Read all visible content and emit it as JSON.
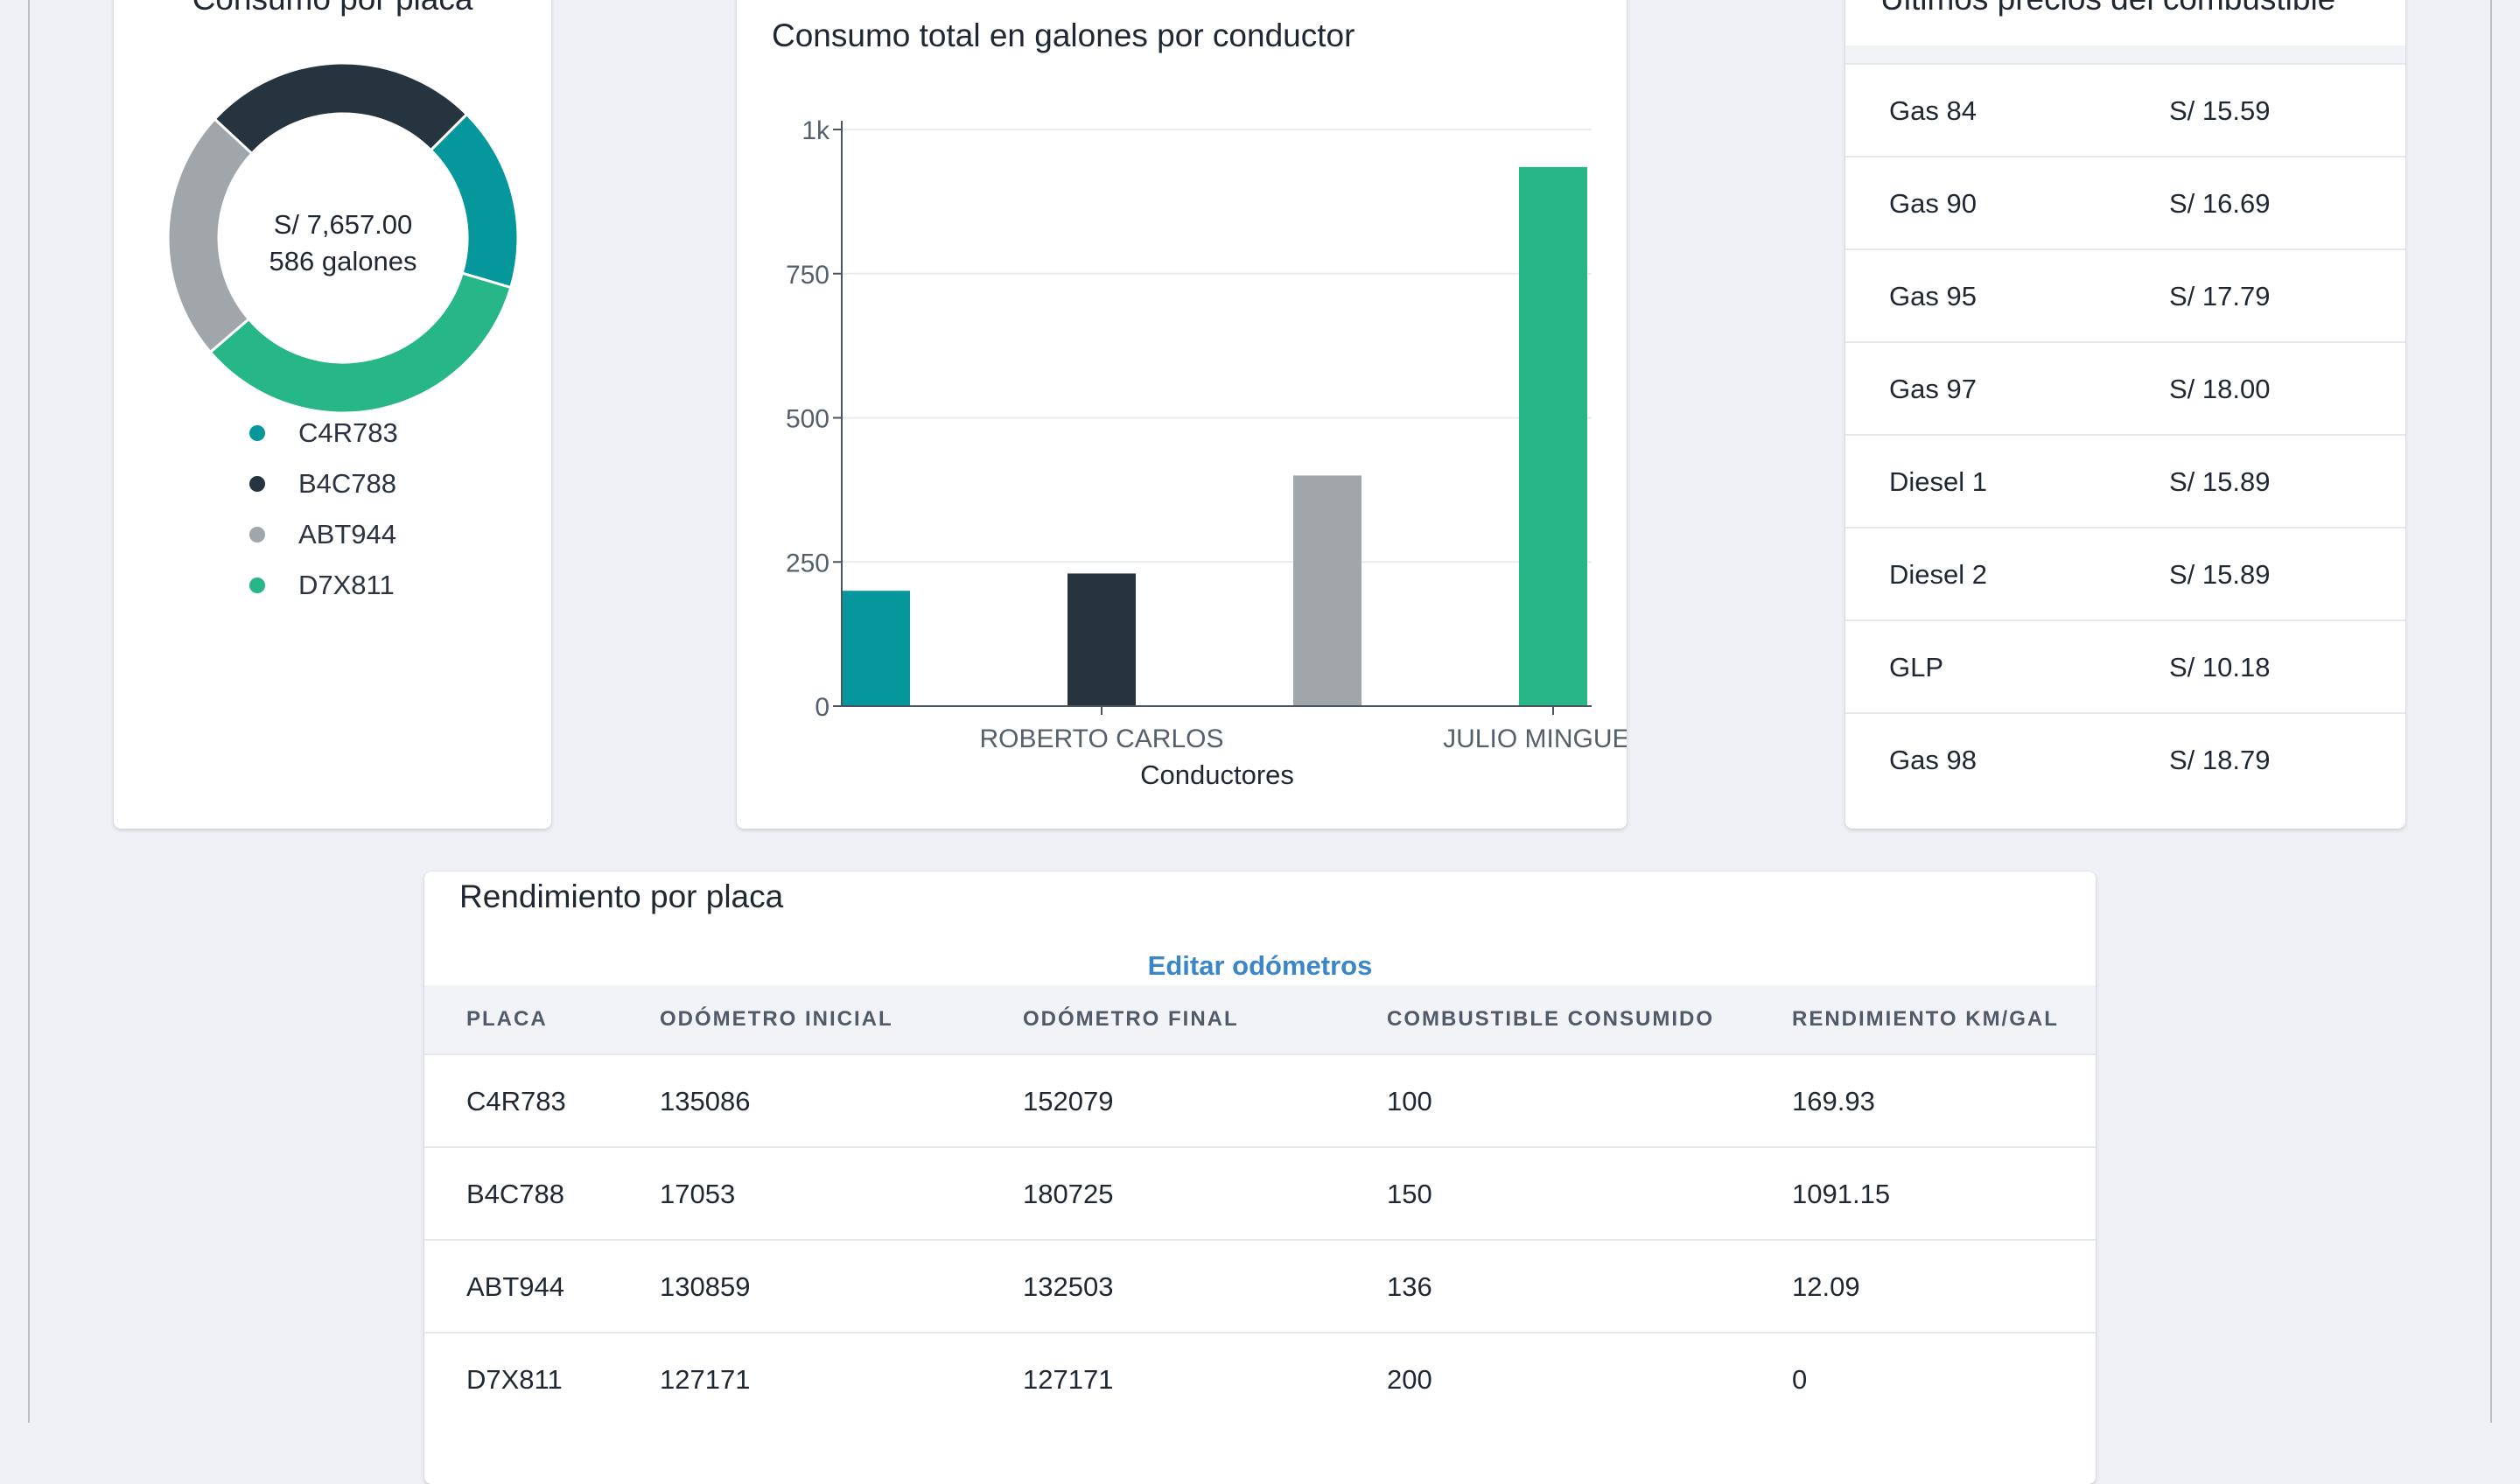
{
  "donut": {
    "title": "Consumo por placa",
    "center_amount": "S/ 7,657.00",
    "center_volume": "586 galones",
    "legend": [
      {
        "label": "C4R783",
        "color": "#06979d"
      },
      {
        "label": "B4C788",
        "color": "#263440"
      },
      {
        "label": "ABT944",
        "color": "#a1a6ab"
      },
      {
        "label": "D7X811",
        "color": "#27b688"
      }
    ],
    "slices": [
      {
        "label": "C4R783",
        "value": 100,
        "color": "#06979d"
      },
      {
        "label": "D7X811",
        "value": 200,
        "color": "#27b688"
      },
      {
        "label": "ABT944",
        "value": 136,
        "color": "#a1a6ab"
      },
      {
        "label": "B4C788",
        "value": 150,
        "color": "#263440"
      }
    ]
  },
  "chart_data": {
    "type": "bar",
    "title": "Consumo total en galones por conductor",
    "xlabel": "Conductores",
    "ylabel": "",
    "ylim": [
      0,
      1000
    ],
    "yticks": [
      0,
      250,
      500,
      750,
      1000
    ],
    "ytick_labels": [
      "0",
      "250",
      "500",
      "750",
      "1k"
    ],
    "categories": [
      "",
      "ROBERTO CARLOS",
      "",
      "JULIO MINGUEZA"
    ],
    "values": [
      200,
      230,
      400,
      935
    ],
    "colors": [
      "#06979d",
      "#263440",
      "#a1a6ab",
      "#27b688"
    ],
    "grid": true
  },
  "prices": {
    "title": "Últimos precios del combustible",
    "rows": [
      {
        "name": "Gas 84",
        "price": "S/ 15.59"
      },
      {
        "name": "Gas 90",
        "price": "S/ 16.69"
      },
      {
        "name": "Gas 95",
        "price": "S/ 17.79"
      },
      {
        "name": "Gas 97",
        "price": "S/ 18.00"
      },
      {
        "name": "Diesel 1",
        "price": "S/ 15.89"
      },
      {
        "name": "Diesel 2",
        "price": "S/ 15.89"
      },
      {
        "name": "GLP",
        "price": "S/ 10.18"
      },
      {
        "name": "Gas 98",
        "price": "S/ 18.79"
      }
    ]
  },
  "performance": {
    "title": "Rendimiento por placa",
    "edit_link": "Editar odómetros",
    "headers": [
      "PLACA",
      "ODÓMETRO INICIAL",
      "ODÓMETRO FINAL",
      "COMBUSTIBLE CONSUMIDO",
      "RENDIMIENTO KM/GAL"
    ],
    "rows": [
      [
        "C4R783",
        "135086",
        "152079",
        "100",
        "169.93"
      ],
      [
        "B4C788",
        "17053",
        "180725",
        "150",
        "1091.15"
      ],
      [
        "ABT944",
        "130859",
        "132503",
        "136",
        "12.09"
      ],
      [
        "D7X811",
        "127171",
        "127171",
        "200",
        "0"
      ]
    ]
  }
}
